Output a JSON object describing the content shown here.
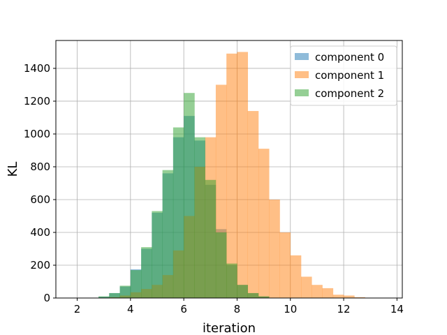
{
  "chart_data": {
    "type": "bar",
    "subtype": "overlapping-histogram",
    "xlabel": "iteration",
    "ylabel": "KL",
    "xlim": [
      1.2,
      14.2
    ],
    "ylim": [
      0,
      1570
    ],
    "xticks": [
      2,
      4,
      6,
      8,
      10,
      12,
      14
    ],
    "yticks": [
      0,
      200,
      400,
      600,
      800,
      1000,
      1200,
      1400
    ],
    "grid": true,
    "legend_position": "top-right",
    "series": [
      {
        "name": "component 0",
        "color": "#1f77b4",
        "opacity": 0.5,
        "bin_edges": [
          2.8,
          3.2,
          3.6,
          4.0,
          4.4,
          4.8,
          5.2,
          5.6,
          6.0,
          6.4,
          6.8,
          7.2,
          7.6,
          8.0,
          8.4,
          8.8,
          9.2
        ],
        "counts": [
          8,
          30,
          70,
          175,
          300,
          520,
          760,
          980,
          1110,
          960,
          690,
          420,
          200,
          80,
          30,
          10
        ]
      },
      {
        "name": "component 1",
        "color": "#ff7f0e",
        "opacity": 0.5,
        "bin_edges": [
          3.2,
          3.6,
          4.0,
          4.4,
          4.8,
          5.2,
          5.6,
          6.0,
          6.4,
          6.8,
          7.2,
          7.6,
          8.0,
          8.4,
          8.8,
          9.2,
          9.6,
          10.0,
          10.4,
          10.8,
          11.2,
          11.6,
          12.0,
          12.4,
          12.8
        ],
        "counts": [
          5,
          15,
          35,
          55,
          80,
          140,
          290,
          500,
          800,
          980,
          1300,
          1490,
          1500,
          1140,
          910,
          600,
          400,
          260,
          130,
          80,
          60,
          20,
          15,
          5
        ]
      },
      {
        "name": "component 2",
        "color": "#2ca02c",
        "opacity": 0.5,
        "bin_edges": [
          2.8,
          3.2,
          3.6,
          4.0,
          4.4,
          4.8,
          5.2,
          5.6,
          6.0,
          6.4,
          6.8,
          7.2,
          7.6,
          8.0,
          8.4,
          8.8,
          9.2
        ],
        "counts": [
          10,
          30,
          75,
          170,
          310,
          530,
          780,
          1040,
          1250,
          980,
          720,
          400,
          210,
          80,
          30,
          10
        ]
      }
    ]
  }
}
